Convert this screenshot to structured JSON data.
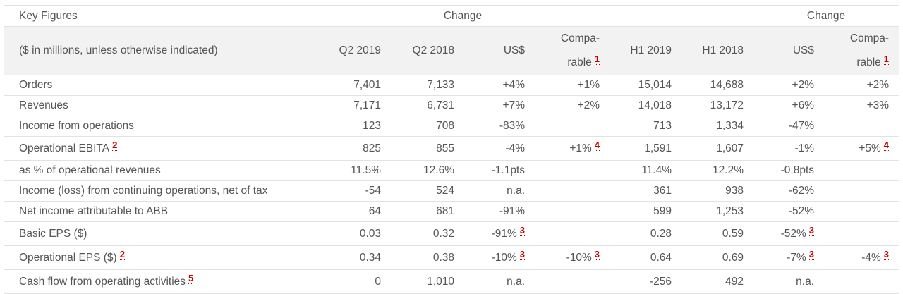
{
  "table": {
    "title": "Key Figures",
    "group1_label": "Change",
    "group2_label": "Change",
    "subtitle": "($ in millions, unless otherwise indicated)",
    "columns": [
      "Q2 2019",
      "Q2 2018",
      "US$",
      "Compa-",
      "rable",
      "H1 2019",
      "H1 2018",
      "US$",
      "Compa-",
      "rable"
    ],
    "comparable_footnote": "1",
    "rows": [
      {
        "label": "Orders",
        "fn": "",
        "cells": [
          {
            "v": "7,401"
          },
          {
            "v": "7,133"
          },
          {
            "v": "+4%"
          },
          {
            "v": "+1%"
          },
          {
            "v": "15,014"
          },
          {
            "v": "14,688"
          },
          {
            "v": "+2%"
          },
          {
            "v": "+2%"
          }
        ]
      },
      {
        "label": "Revenues",
        "fn": "",
        "cells": [
          {
            "v": "7,171"
          },
          {
            "v": "6,731"
          },
          {
            "v": "+7%"
          },
          {
            "v": "+2%"
          },
          {
            "v": "14,018"
          },
          {
            "v": "13,172"
          },
          {
            "v": "+6%"
          },
          {
            "v": "+3%"
          }
        ]
      },
      {
        "label": "Income from operations",
        "fn": "",
        "cells": [
          {
            "v": "123"
          },
          {
            "v": "708"
          },
          {
            "v": "-83%"
          },
          {
            "v": ""
          },
          {
            "v": "713"
          },
          {
            "v": "1,334"
          },
          {
            "v": "-47%"
          },
          {
            "v": ""
          }
        ]
      },
      {
        "label": "Operational EBITA",
        "fn": "2",
        "cells": [
          {
            "v": "825"
          },
          {
            "v": "855"
          },
          {
            "v": "-4%"
          },
          {
            "v": "+1%",
            "fn": "4"
          },
          {
            "v": "1,591"
          },
          {
            "v": "1,607"
          },
          {
            "v": "-1%"
          },
          {
            "v": "+5%",
            "fn": "4"
          }
        ]
      },
      {
        "label": "as % of operational revenues",
        "fn": "",
        "cells": [
          {
            "v": "11.5%"
          },
          {
            "v": "12.6%"
          },
          {
            "v": "-1.1pts"
          },
          {
            "v": ""
          },
          {
            "v": "11.4%"
          },
          {
            "v": "12.2%"
          },
          {
            "v": "-0.8pts"
          },
          {
            "v": ""
          }
        ]
      },
      {
        "label": "Income (loss) from continuing operations, net of tax",
        "fn": "",
        "cells": [
          {
            "v": "-54"
          },
          {
            "v": "524"
          },
          {
            "v": "n.a."
          },
          {
            "v": ""
          },
          {
            "v": "361"
          },
          {
            "v": "938"
          },
          {
            "v": "-62%"
          },
          {
            "v": ""
          }
        ]
      },
      {
        "label": "Net income attributable to ABB",
        "fn": "",
        "cells": [
          {
            "v": "64"
          },
          {
            "v": "681"
          },
          {
            "v": "-91%"
          },
          {
            "v": ""
          },
          {
            "v": "599"
          },
          {
            "v": "1,253"
          },
          {
            "v": "-52%"
          },
          {
            "v": ""
          }
        ]
      },
      {
        "label": "Basic EPS ($)",
        "fn": "",
        "cells": [
          {
            "v": "0.03"
          },
          {
            "v": "0.32"
          },
          {
            "v": "-91%",
            "fn": "3"
          },
          {
            "v": ""
          },
          {
            "v": "0.28"
          },
          {
            "v": "0.59"
          },
          {
            "v": "-52%",
            "fn": "3"
          },
          {
            "v": ""
          }
        ]
      },
      {
        "label": "Operational EPS ($)",
        "fn": "2",
        "cells": [
          {
            "v": "0.34"
          },
          {
            "v": "0.38"
          },
          {
            "v": "-10%",
            "fn": "3"
          },
          {
            "v": "-10%",
            "fn": "3"
          },
          {
            "v": "0.64"
          },
          {
            "v": "0.69"
          },
          {
            "v": "-7%",
            "fn": "3"
          },
          {
            "v": "-4%",
            "fn": "3"
          }
        ]
      },
      {
        "label": "Cash flow from operating activities",
        "fn": "5",
        "cells": [
          {
            "v": "0"
          },
          {
            "v": "1,010"
          },
          {
            "v": "n.a."
          },
          {
            "v": ""
          },
          {
            "v": "-256"
          },
          {
            "v": "492"
          },
          {
            "v": "n.a."
          },
          {
            "v": ""
          }
        ]
      }
    ]
  }
}
